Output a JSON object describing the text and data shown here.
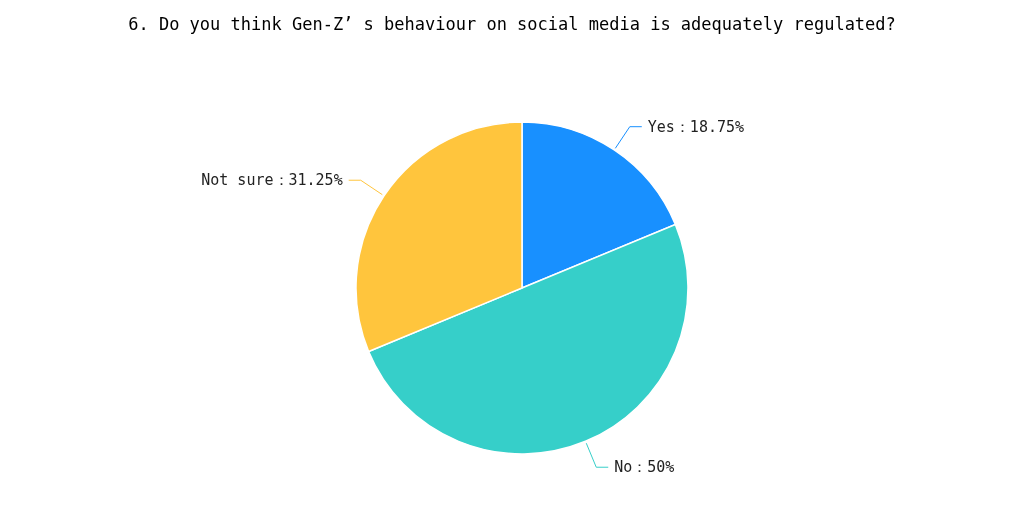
{
  "chart_data": {
    "type": "pie",
    "title": "6. Do you think Gen-Z’ s behaviour on social media is adequately regulated?",
    "categories": [
      "Yes",
      "No",
      "Not sure"
    ],
    "values": [
      18.75,
      50,
      31.25
    ],
    "value_labels": [
      "：18.75%",
      "：50%",
      "：31.25%"
    ],
    "colors": [
      "#1890ff",
      "#36cfc9",
      "#ffc53d"
    ]
  }
}
